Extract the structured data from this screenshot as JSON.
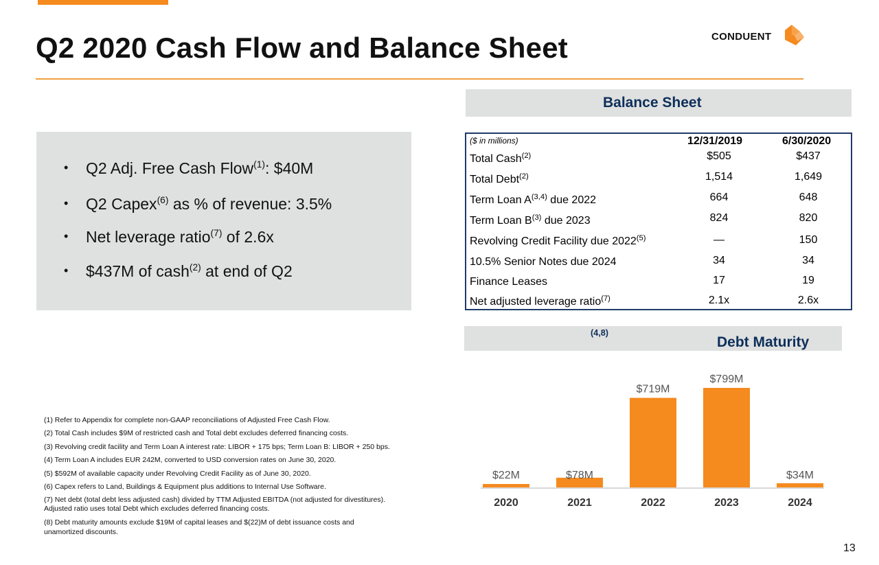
{
  "slide": {
    "title": "Q2 2020 Cash Flow and Balance Sheet",
    "page_number": "13",
    "accent_color": "#f58a1f",
    "navy_color": "#0d2f5a"
  },
  "logo": {
    "text": "CONDUENT",
    "icon": "conduent-logo-icon"
  },
  "bullets": [
    {
      "pre": "Q2 Adj. Free Cash Flow",
      "sup": "(1)",
      "post": ": $40M"
    },
    {
      "pre": "Q2 Capex",
      "sup": "(6)",
      "post": " as % of revenue: 3.5%"
    },
    {
      "pre": "Net leverage ratio",
      "sup": "(7)",
      "post": " of 2.6x"
    },
    {
      "pre": "$437M of cash",
      "sup": "(2)",
      "post": " at end of Q2"
    }
  ],
  "bullet_symbol": "•",
  "balance_sheet": {
    "title": "Balance Sheet",
    "units": "($ in millions)",
    "col1": "12/31/2019",
    "col2": "6/30/2020",
    "rows": [
      {
        "label": "Total Cash",
        "sup": "(2)",
        "post": "",
        "v1": "$505",
        "v2": "$437"
      },
      {
        "label": "Total Debt",
        "sup": "(2)",
        "post": "",
        "v1": "1,514",
        "v2": "1,649"
      },
      {
        "label": "Term Loan A",
        "sup": "(3,4)",
        "post": " due 2022",
        "v1": "664",
        "v2": "648"
      },
      {
        "label": "Term Loan B",
        "sup": "(3)",
        "post": " due 2023",
        "v1": "824",
        "v2": "820"
      },
      {
        "label": "Revolving Credit Facility due 2022",
        "sup": "(5)",
        "post": "",
        "v1": "—",
        "v2": "150"
      },
      {
        "label": "10.5% Senior Notes due 2024",
        "sup": "",
        "post": "",
        "v1": "34",
        "v2": "34"
      },
      {
        "label": "Finance Leases",
        "sup": "",
        "post": "",
        "v1": "17",
        "v2": "19"
      },
      {
        "label": "Net adjusted leverage ratio",
        "sup": "(7)",
        "post": "",
        "v1": "2.1x",
        "v2": "2.6x"
      }
    ]
  },
  "debt_maturity": {
    "title": "Debt Maturity",
    "sup": "(4,8)"
  },
  "chart_data": {
    "type": "bar",
    "title": "Debt Maturity",
    "categories": [
      "2020",
      "2021",
      "2022",
      "2023",
      "2024"
    ],
    "values": [
      22,
      78,
      719,
      799,
      34
    ],
    "data_labels": [
      "$22M",
      "$78M",
      "$719M",
      "$799M",
      "$34M"
    ],
    "ylim": [
      0,
      799
    ],
    "bar_color": "#f58a1f",
    "grid": false
  },
  "footnotes": [
    "(1) Refer to Appendix for complete non-GAAP reconciliations of Adjusted Free Cash Flow.",
    "(2) Total Cash includes $9M of restricted cash and Total debt excludes deferred financing costs.",
    "(3) Revolving credit facility and Term Loan A interest rate: LIBOR + 175 bps; Term Loan B:  LIBOR + 250 bps.",
    "(4) Term Loan A includes EUR 242M, converted to USD conversion rates on June 30, 2020.",
    "(5) $592M of available capacity under Revolving Credit Facility as of  June 30, 2020.",
    "(6) Capex refers to Land, Buildings & Equipment plus additions to Internal Use Software.",
    "(7) Net debt (total debt less adjusted cash) divided by TTM Adjusted EBITDA (not adjusted for divestitures).",
    "Adjusted ratio uses total Debt which excludes deferred financing costs.",
    "(8) Debt maturity amounts exclude $19M of capital leases and $(22)M of debt issuance costs and",
    "unamortized discounts."
  ]
}
